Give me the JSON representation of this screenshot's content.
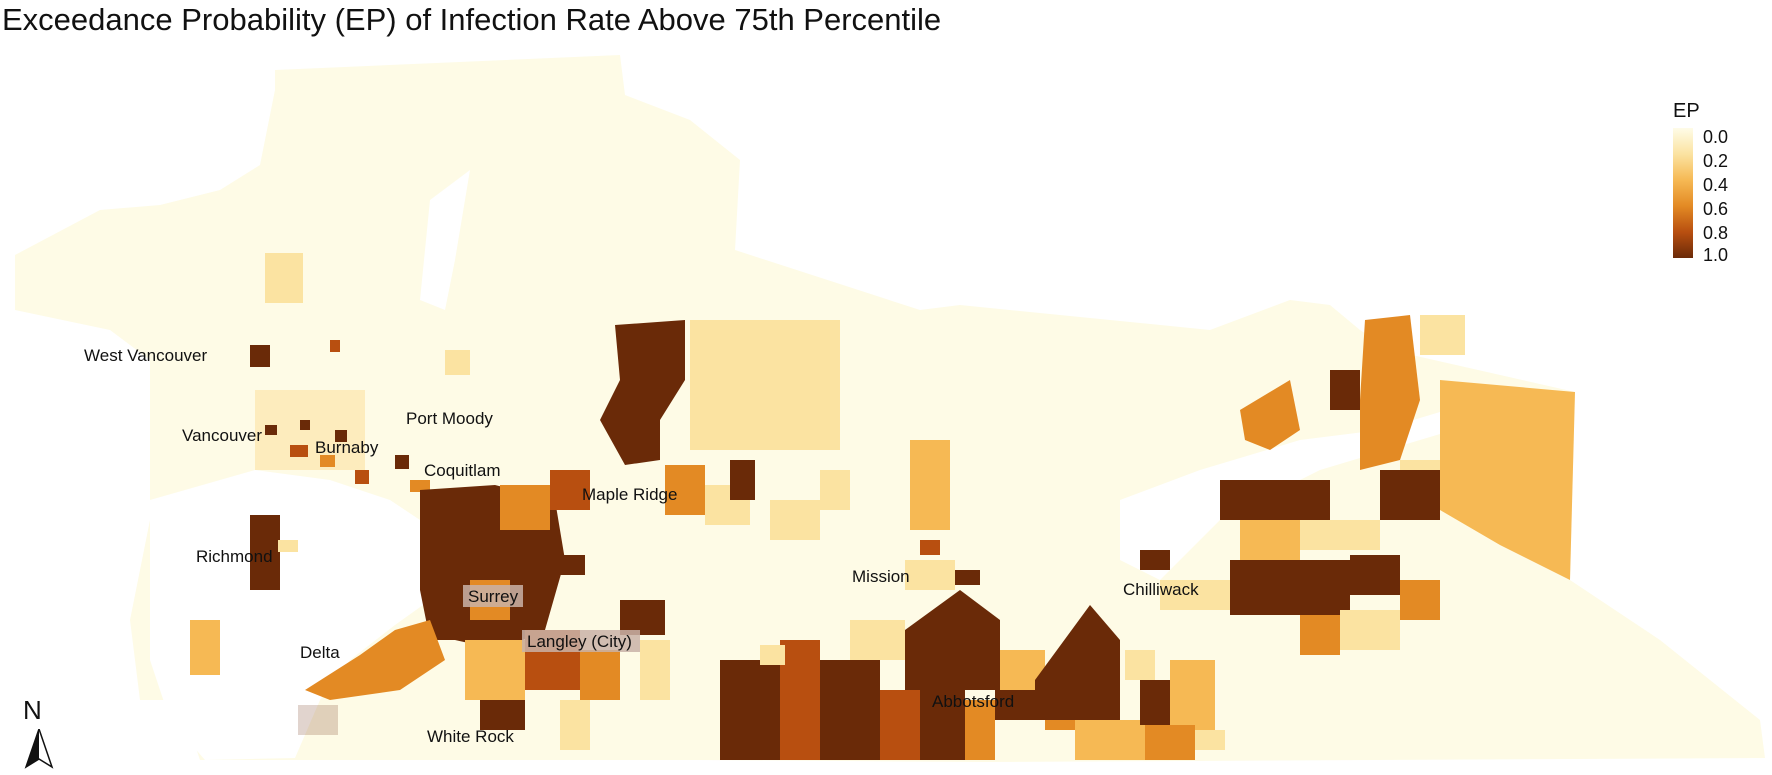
{
  "title": "Exceedance Probability (EP) of Infection Rate Above 75th Percentile",
  "legend": {
    "title": "EP",
    "ticks": [
      "0.0",
      "0.2",
      "0.4",
      "0.6",
      "0.8",
      "1.0"
    ],
    "colors": [
      "#fefce8",
      "#fbe3a1",
      "#f6b954",
      "#e38a24",
      "#b84f10",
      "#6a2a08"
    ]
  },
  "north_arrow": {
    "label": "N"
  },
  "cities": [
    {
      "name": "West Vancouver",
      "highlighted": false
    },
    {
      "name": "Vancouver",
      "highlighted": false
    },
    {
      "name": "Burnaby",
      "highlighted": false
    },
    {
      "name": "Port Moody",
      "highlighted": false
    },
    {
      "name": "Coquitlam",
      "highlighted": false
    },
    {
      "name": "Maple Ridge",
      "highlighted": false
    },
    {
      "name": "Richmond",
      "highlighted": false
    },
    {
      "name": "Surrey",
      "highlighted": true
    },
    {
      "name": "Langley (City)",
      "highlighted": true
    },
    {
      "name": "Delta",
      "highlighted": false
    },
    {
      "name": "Mission",
      "highlighted": false
    },
    {
      "name": "Chilliwack",
      "highlighted": false
    },
    {
      "name": "Abbotsford",
      "highlighted": false
    },
    {
      "name": "White Rock",
      "highlighted": false
    }
  ]
}
